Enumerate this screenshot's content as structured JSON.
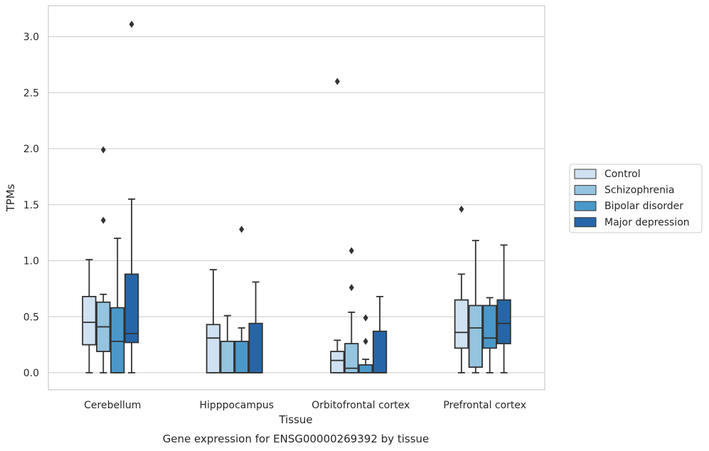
{
  "caption": "Gene expression for ENSG00000269392 by tissue",
  "chart_data": {
    "type": "boxplot",
    "xlabel": "Tissue",
    "ylabel": "TPMs",
    "ylim": [
      -0.15,
      3.26
    ],
    "yticks": [
      0.0,
      0.5,
      1.0,
      1.5,
      2.0,
      2.5,
      3.0
    ],
    "ytick_labels": [
      "0.0",
      "0.5",
      "1.0",
      "1.5",
      "2.0",
      "2.5",
      "3.0"
    ],
    "grid": "horizontal",
    "legend_position": "right",
    "categories": [
      "Cerebellum",
      "Hipppocampus",
      "Orbitofrontal cortex",
      "Prefrontal cortex"
    ],
    "series": [
      {
        "name": "Control",
        "color": "#d0e1f2",
        "boxes": [
          {
            "min": 0.0,
            "q1": 0.25,
            "median": 0.45,
            "q3": 0.68,
            "max": 1.01,
            "outliers": []
          },
          {
            "min": 0.0,
            "q1": 0.0,
            "median": 0.31,
            "q3": 0.43,
            "max": 0.92,
            "outliers": []
          },
          {
            "min": 0.0,
            "q1": 0.0,
            "median": 0.11,
            "q3": 0.19,
            "max": 0.29,
            "outliers": [
              2.6
            ]
          },
          {
            "min": 0.0,
            "q1": 0.22,
            "median": 0.36,
            "q3": 0.65,
            "max": 0.88,
            "outliers": [
              1.46
            ]
          }
        ]
      },
      {
        "name": "Schizophrenia",
        "color": "#94c4df",
        "boxes": [
          {
            "min": 0.0,
            "q1": 0.19,
            "median": 0.41,
            "q3": 0.63,
            "max": 0.7,
            "outliers": [
              1.36,
              1.99
            ]
          },
          {
            "min": 0.0,
            "q1": 0.0,
            "median": 0.0,
            "q3": 0.28,
            "max": 0.51,
            "outliers": []
          },
          {
            "min": 0.0,
            "q1": 0.0,
            "median": 0.04,
            "q3": 0.26,
            "max": 0.54,
            "outliers": [
              0.76,
              1.09
            ]
          },
          {
            "min": 0.0,
            "q1": 0.05,
            "median": 0.4,
            "q3": 0.6,
            "max": 1.18,
            "outliers": []
          }
        ]
      },
      {
        "name": "Bipolar disorder",
        "color": "#4a98c9",
        "boxes": [
          {
            "min": 0.0,
            "q1": 0.0,
            "median": 0.28,
            "q3": 0.58,
            "max": 1.2,
            "outliers": []
          },
          {
            "min": 0.0,
            "q1": 0.0,
            "median": 0.0,
            "q3": 0.28,
            "max": 0.4,
            "outliers": [
              1.28
            ]
          },
          {
            "min": 0.0,
            "q1": 0.0,
            "median": 0.0,
            "q3": 0.07,
            "max": 0.12,
            "outliers": [
              0.28,
              0.49
            ]
          },
          {
            "min": 0.0,
            "q1": 0.22,
            "median": 0.31,
            "q3": 0.6,
            "max": 0.67,
            "outliers": []
          }
        ]
      },
      {
        "name": "Major depression",
        "color": "#2666a8",
        "boxes": [
          {
            "min": 0.0,
            "q1": 0.27,
            "median": 0.35,
            "q3": 0.88,
            "max": 1.55,
            "outliers": [
              3.11
            ]
          },
          {
            "min": 0.0,
            "q1": 0.0,
            "median": 0.0,
            "q3": 0.44,
            "max": 0.81,
            "outliers": []
          },
          {
            "min": 0.0,
            "q1": 0.0,
            "median": 0.0,
            "q3": 0.37,
            "max": 0.68,
            "outliers": []
          },
          {
            "min": 0.0,
            "q1": 0.26,
            "median": 0.44,
            "q3": 0.65,
            "max": 1.14,
            "outliers": []
          }
        ]
      }
    ]
  }
}
